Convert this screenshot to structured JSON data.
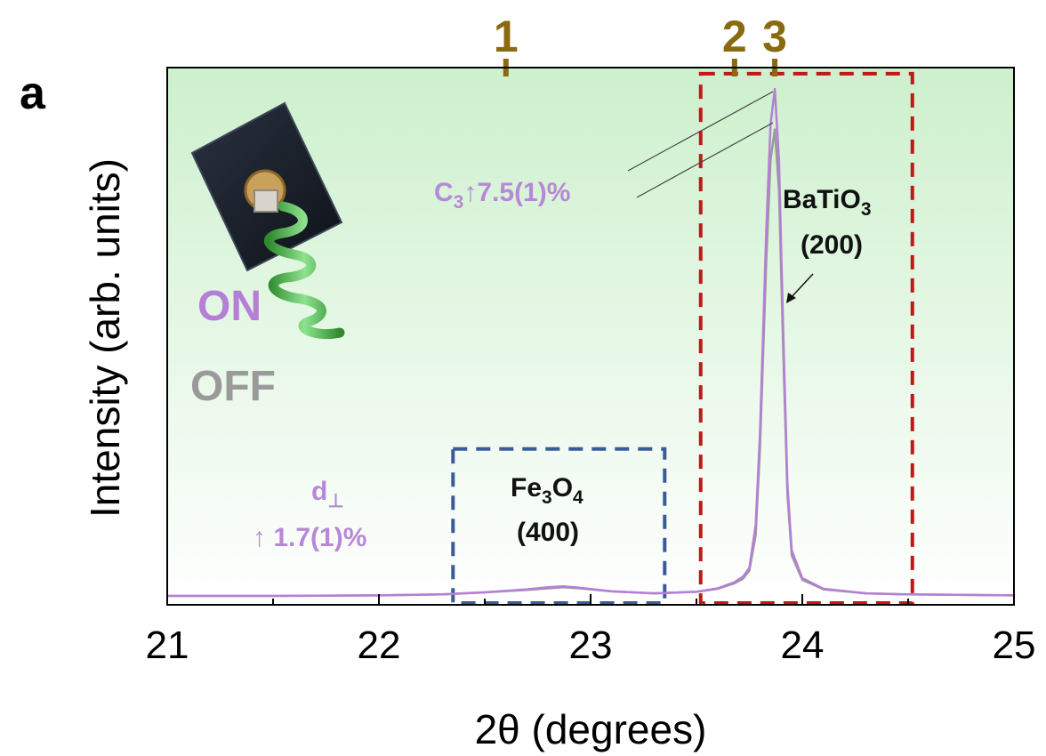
{
  "chart_data": {
    "type": "line",
    "panel_label": "a",
    "xlabel": "2θ (degrees)",
    "ylabel": "Intensity (arb. units)",
    "xlim": [
      21,
      25
    ],
    "x_ticks": [
      "21",
      "22",
      "23",
      "24",
      "25"
    ],
    "series": [
      {
        "name": "ON",
        "color": "#b57fd6",
        "x": [
          21.0,
          21.5,
          22.0,
          22.3,
          22.5,
          22.7,
          22.8,
          22.87,
          22.95,
          23.1,
          23.3,
          23.5,
          23.6,
          23.68,
          23.72,
          23.75,
          23.78,
          23.8,
          23.83,
          23.85,
          23.87,
          23.89,
          23.91,
          23.93,
          23.95,
          24.0,
          24.1,
          24.3,
          24.5,
          25.0
        ],
        "y": [
          0.0,
          0.0,
          0.001,
          0.003,
          0.007,
          0.013,
          0.017,
          0.019,
          0.016,
          0.009,
          0.005,
          0.008,
          0.015,
          0.027,
          0.038,
          0.055,
          0.14,
          0.32,
          0.72,
          0.93,
          1.0,
          0.86,
          0.52,
          0.22,
          0.09,
          0.035,
          0.014,
          0.005,
          0.003,
          0.001
        ]
      },
      {
        "name": "OFF",
        "color": "#9a9a9a",
        "x": [
          21.0,
          21.5,
          22.0,
          22.3,
          22.5,
          22.7,
          22.8,
          22.87,
          22.95,
          23.1,
          23.3,
          23.5,
          23.6,
          23.68,
          23.72,
          23.75,
          23.78,
          23.8,
          23.83,
          23.85,
          23.87,
          23.89,
          23.91,
          23.93,
          23.95,
          24.0,
          24.1,
          24.3,
          24.5,
          25.0
        ],
        "y": [
          0.0,
          0.0,
          0.001,
          0.003,
          0.007,
          0.012,
          0.015,
          0.017,
          0.015,
          0.009,
          0.005,
          0.008,
          0.014,
          0.025,
          0.034,
          0.05,
          0.12,
          0.29,
          0.66,
          0.86,
          0.92,
          0.8,
          0.48,
          0.2,
          0.08,
          0.032,
          0.013,
          0.005,
          0.003,
          0.001
        ]
      }
    ],
    "markers": [
      {
        "label": "1",
        "x": 22.6
      },
      {
        "label": "2",
        "x": 23.68
      },
      {
        "label": "3",
        "x": 23.87
      }
    ],
    "boxes": [
      {
        "name": "Fe3O4",
        "x_range": [
          22.35,
          23.35
        ],
        "y_range": [
          0.0,
          0.29
        ],
        "color": "#3a5a9a"
      },
      {
        "name": "BaTiO3",
        "x_range": [
          23.52,
          24.52
        ],
        "y_range": [
          0.0,
          1.03
        ],
        "color": "#c01818"
      }
    ],
    "annotations": {
      "fe3o4": {
        "formula_a": "Fe",
        "sub_a": "3",
        "formula_b": "O",
        "sub_b": "4",
        "plane": "(400)"
      },
      "batio3": {
        "formula": "BaTiO",
        "sub": "3",
        "plane": "(200)"
      },
      "c3": {
        "prefix": "C",
        "sub": "3",
        "text": "↑7.5(1)%"
      },
      "dperp": {
        "prefix": "d",
        "sub": "⊥",
        "text": "↑ 1.7(1)%"
      },
      "legend_on": "ON",
      "legend_off": "OFF"
    },
    "background": "light green gradient"
  }
}
